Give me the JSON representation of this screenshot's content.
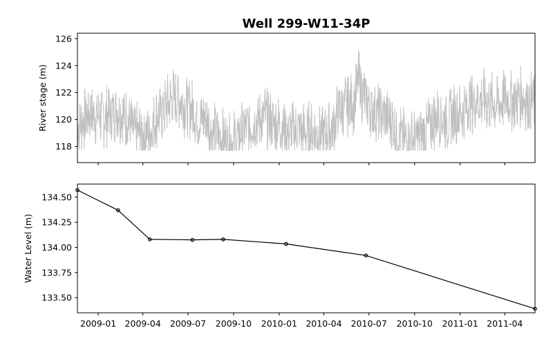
{
  "title": "Well 299-W11-34P",
  "chart_data": [
    {
      "type": "line",
      "ylabel": "River stage (m)",
      "xlabel": "",
      "xlim": [
        "2008-11-20",
        "2011-06-01"
      ],
      "ylim": [
        116.8,
        126.4
      ],
      "yticks": [
        118,
        120,
        122,
        124,
        126
      ],
      "grid": false,
      "color": "#c0c0c0",
      "series": [
        {
          "x": [
            "2008-11-20",
            "2008-12-15",
            "2009-01-15",
            "2009-02-10",
            "2009-03-01",
            "2009-03-15",
            "2009-04-15",
            "2009-05-01",
            "2009-05-20",
            "2009-06-01",
            "2009-06-15",
            "2009-06-25",
            "2009-07-10",
            "2009-07-25",
            "2009-08-05",
            "2009-08-20",
            "2009-09-05",
            "2009-09-20",
            "2009-10-05",
            "2009-10-20",
            "2009-11-05",
            "2009-11-20",
            "2009-12-05",
            "2009-12-20",
            "2010-01-05",
            "2010-01-20",
            "2010-02-05",
            "2010-02-20",
            "2010-03-05",
            "2010-03-20",
            "2010-04-05",
            "2010-04-20",
            "2010-05-01",
            "2010-05-15",
            "2010-06-01",
            "2010-06-10",
            "2010-06-20",
            "2010-07-05",
            "2010-07-20",
            "2010-08-05",
            "2010-08-20",
            "2010-09-05",
            "2010-09-20",
            "2010-10-05",
            "2010-10-20",
            "2010-11-05",
            "2010-11-20",
            "2010-12-05",
            "2010-12-20",
            "2011-01-05",
            "2011-01-20",
            "2011-02-05",
            "2011-02-20",
            "2011-03-05",
            "2011-03-20",
            "2011-04-05",
            "2011-04-20",
            "2011-05-05",
            "2011-05-20",
            "2011-06-01"
          ],
          "y": [
            119.5,
            120.5,
            120.2,
            120.8,
            120.0,
            119.0,
            119.0,
            120.3,
            121.0,
            121.6,
            121.5,
            121.0,
            120.8,
            119.8,
            120.2,
            119.0,
            118.6,
            118.4,
            118.4,
            119.2,
            119.6,
            120.0,
            120.3,
            119.6,
            119.5,
            119.0,
            119.2,
            119.0,
            119.1,
            119.0,
            118.9,
            119.4,
            120.6,
            121.0,
            121.2,
            122.9,
            121.8,
            121.0,
            120.5,
            120.3,
            119.5,
            118.6,
            118.3,
            118.6,
            119.0,
            119.8,
            120.4,
            119.9,
            120.4,
            120.6,
            121.2,
            121.5,
            121.4,
            121.3,
            121.1,
            121.6,
            121.4,
            121.8,
            121.3,
            121.3
          ]
        }
      ]
    },
    {
      "type": "line",
      "ylabel": "Water Level (m)",
      "xlabel": "",
      "xlim": [
        "2008-11-20",
        "2011-06-01"
      ],
      "ylim": [
        133.35,
        134.63
      ],
      "yticks": [
        133.5,
        133.75,
        134.0,
        134.25,
        134.5
      ],
      "ytick_labels": [
        "133.50",
        "133.75",
        "134.00",
        "134.25",
        "134.50"
      ],
      "xticks": [
        "2009-01",
        "2009-04",
        "2009-07",
        "2009-10",
        "2010-01",
        "2010-04",
        "2010-07",
        "2010-10",
        "2011-01",
        "2011-04"
      ],
      "grid": false,
      "markers": "circle",
      "color": "#000000",
      "series": [
        {
          "x": [
            "2008-11-20",
            "2009-02-10",
            "2009-04-15",
            "2009-07-10",
            "2009-09-10",
            "2010-01-15",
            "2010-06-25",
            "2011-06-01"
          ],
          "y": [
            134.57,
            134.37,
            134.08,
            134.075,
            134.08,
            134.035,
            133.92,
            133.39
          ]
        }
      ]
    }
  ]
}
